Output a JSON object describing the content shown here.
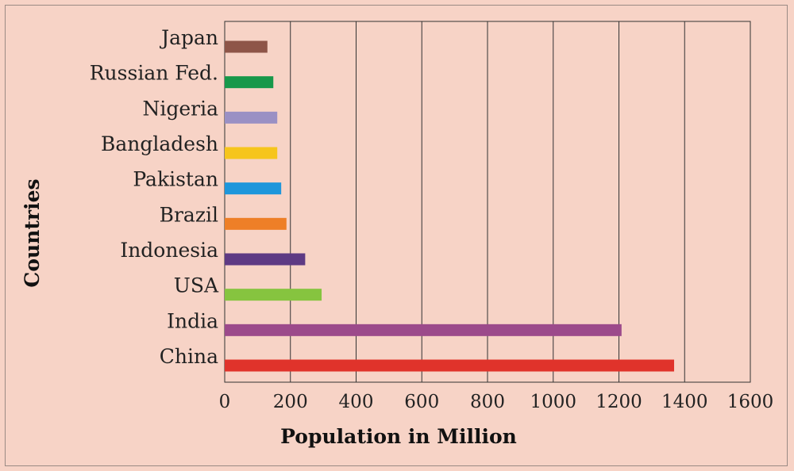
{
  "chart_data": {
    "type": "bar",
    "orientation": "horizontal",
    "categories": [
      "China",
      "India",
      "USA",
      "Indonesia",
      "Brazil",
      "Pakistan",
      "Bangladesh",
      "Nigeria",
      "Russian Fed.",
      "Japan"
    ],
    "values": [
      1368,
      1208,
      295,
      245,
      188,
      172,
      160,
      160,
      148,
      130
    ],
    "colors": [
      "#e0332b",
      "#9c4a8b",
      "#86c43f",
      "#5e3a84",
      "#ee7f27",
      "#1e96db",
      "#f6c51c",
      "#9a90c4",
      "#17984a",
      "#8e5548"
    ],
    "xlabel": "Population in Million",
    "ylabel": "Countries",
    "xlim": [
      0,
      1600
    ],
    "xticks": [
      "0",
      "200",
      "400",
      "600",
      "800",
      "1000",
      "1200",
      "1400",
      "1600"
    ],
    "grid": "vertical lines at each x tick"
  }
}
